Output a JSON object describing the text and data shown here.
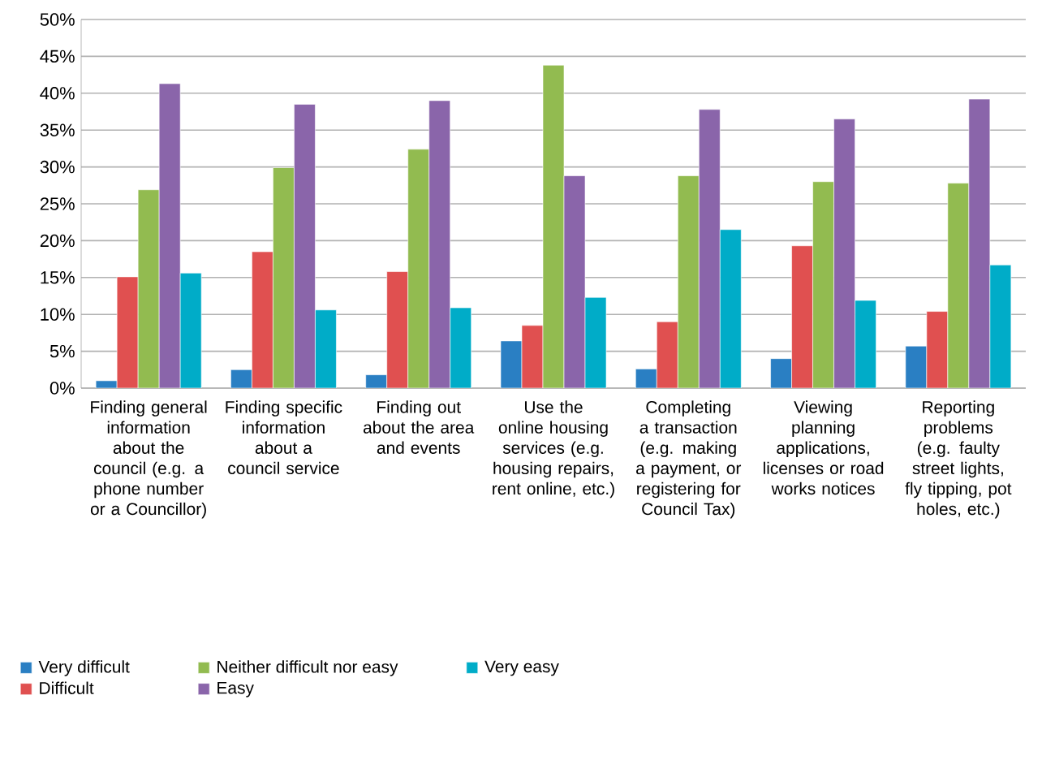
{
  "chart_data": {
    "type": "bar",
    "categories": [
      "Finding general information about the council (e.g. a phone number or a Councillor)",
      "Finding specific information about a council service",
      "Finding out about the area and events",
      "Use the online housing services (e.g. housing repairs, rent online, etc.)",
      "Completing a transaction (e.g. making a payment, or registering for Council Tax)",
      "Viewing planning applications, licenses or road works notices",
      "Reporting problems (e.g. faulty street lights, fly tipping, pot holes, etc.)"
    ],
    "series": [
      {
        "name": "Very difficult",
        "color": "#2a7fc3",
        "values": [
          1.0,
          2.5,
          1.8,
          6.4,
          2.6,
          4.0,
          5.7
        ]
      },
      {
        "name": "Difficult",
        "color": "#e05050",
        "values": [
          15.1,
          18.5,
          15.8,
          8.5,
          9.0,
          19.3,
          10.4
        ]
      },
      {
        "name": "Neither difficult nor easy",
        "color": "#92bb50",
        "values": [
          26.9,
          29.9,
          32.4,
          43.8,
          28.8,
          28.0,
          27.8
        ]
      },
      {
        "name": "Easy",
        "color": "#8a65aa",
        "values": [
          41.3,
          38.5,
          39.0,
          28.8,
          37.8,
          36.5,
          39.2
        ]
      },
      {
        "name": "Very easy",
        "color": "#00acc8",
        "values": [
          15.6,
          10.6,
          10.9,
          12.3,
          21.5,
          11.9,
          16.7
        ]
      }
    ],
    "ylim": [
      0,
      50
    ],
    "yticks": [
      {
        "value": 0,
        "label": "0%"
      },
      {
        "value": 5,
        "label": "5%"
      },
      {
        "value": 10,
        "label": "10%"
      },
      {
        "value": 15,
        "label": "15%"
      },
      {
        "value": 20,
        "label": "20%"
      },
      {
        "value": 25,
        "label": "25%"
      },
      {
        "value": 30,
        "label": "30%"
      },
      {
        "value": 35,
        "label": "35%"
      },
      {
        "value": 40,
        "label": "40%"
      },
      {
        "value": 45,
        "label": "45%"
      },
      {
        "value": 50,
        "label": "50%"
      }
    ],
    "grid": "y",
    "legend": "bottom"
  }
}
